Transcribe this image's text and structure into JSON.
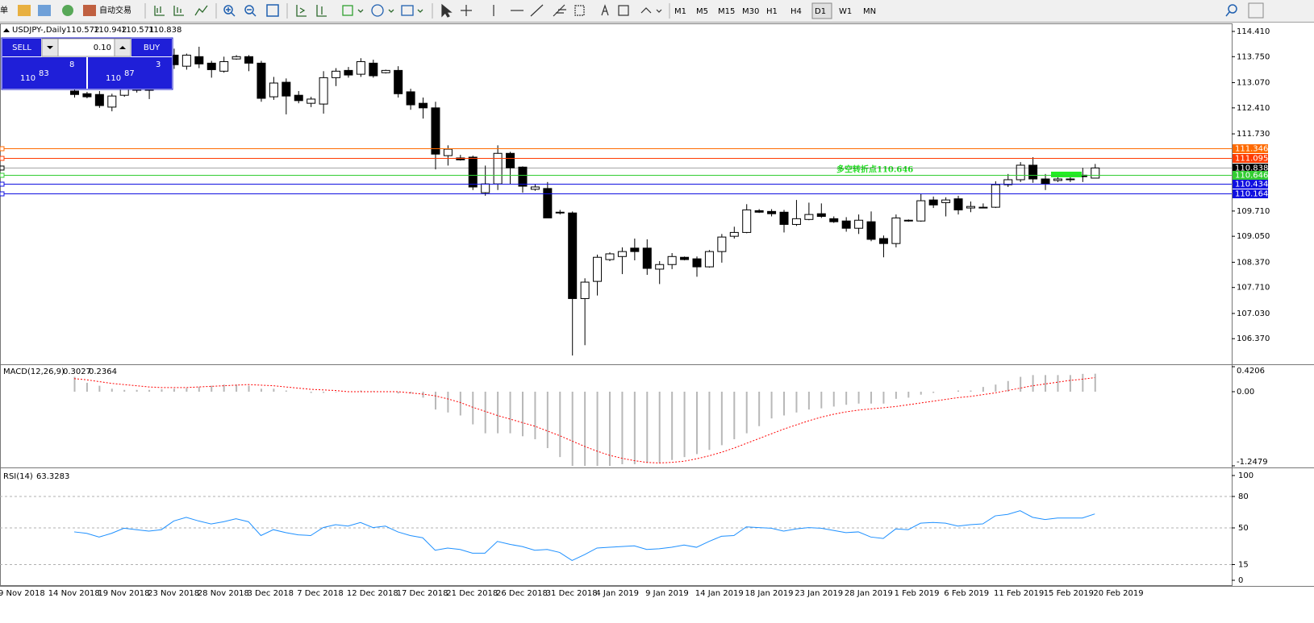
{
  "toolbar": {
    "menu_fragment": "单",
    "autotrade": "自动交易",
    "timeframes": [
      "M1",
      "M5",
      "M15",
      "M30",
      "H1",
      "H4",
      "D1",
      "W1",
      "MN"
    ],
    "active_timeframe": "D1"
  },
  "trade_panel": {
    "sell": "SELL",
    "buy": "BUY",
    "lots": "0.10",
    "sell_price": {
      "big": "110",
      "pips": "83",
      "point": "8"
    },
    "buy_price": {
      "big": "110",
      "pips": "87",
      "point": "3"
    }
  },
  "chart": {
    "symbol": "USDJPY-,Daily",
    "candles": {
      "open": [
        112.85,
        112.78,
        112.76,
        112.43,
        112.74,
        112.87,
        113.12,
        112.91,
        113.79,
        113.5,
        113.75,
        113.58,
        113.37,
        113.69,
        113.75,
        113.58,
        112.7,
        113.08,
        112.74,
        112.53,
        112.51,
        113.2,
        113.39,
        113.29,
        113.58,
        113.33,
        113.39,
        112.83,
        112.53,
        112.41,
        111.16,
        111.1,
        111.12,
        110.19,
        110.42,
        111.22,
        110.86,
        110.28,
        110.3,
        109.68,
        109.66,
        107.42,
        107.87,
        108.44,
        108.52,
        108.74,
        108.74,
        108.19,
        108.31,
        108.5,
        108.46,
        108.25,
        108.65,
        109.05,
        109.15,
        109.72,
        109.7,
        109.68,
        109.36,
        109.49,
        109.64,
        109.51,
        109.45,
        109.26,
        109.43,
        108.99,
        108.86,
        109.47,
        109.45,
        110.0,
        109.93,
        110.03,
        109.79,
        109.79,
        109.81,
        110.4,
        110.53,
        110.91,
        110.55,
        110.51,
        110.53,
        110.65,
        110.572
      ],
      "high": [
        112.91,
        112.83,
        112.85,
        112.78,
        113.02,
        113.12,
        113.22,
        113.33,
        113.96,
        113.83,
        114.01,
        113.64,
        113.75,
        113.79,
        113.79,
        113.64,
        113.22,
        113.18,
        112.85,
        112.7,
        113.37,
        113.45,
        113.48,
        113.71,
        113.67,
        113.41,
        113.5,
        112.91,
        112.68,
        112.57,
        111.43,
        111.18,
        111.16,
        110.9,
        111.43,
        111.26,
        110.88,
        110.42,
        110.47,
        109.74,
        109.7,
        107.95,
        108.57,
        108.63,
        108.76,
        108.99,
        108.97,
        108.4,
        108.61,
        108.52,
        108.52,
        108.69,
        109.11,
        109.3,
        109.89,
        109.76,
        109.76,
        109.74,
        110.0,
        109.93,
        109.91,
        109.57,
        109.55,
        109.62,
        109.7,
        109.07,
        109.62,
        109.49,
        110.17,
        110.09,
        110.07,
        110.11,
        109.96,
        109.91,
        110.49,
        110.68,
        110.99,
        111.12,
        110.68,
        110.7,
        110.72,
        110.84,
        110.942
      ],
      "low": [
        112.68,
        112.66,
        112.41,
        112.32,
        112.7,
        112.81,
        112.64,
        112.89,
        113.43,
        113.41,
        113.45,
        113.2,
        113.33,
        113.67,
        113.37,
        112.57,
        112.62,
        112.24,
        112.53,
        112.43,
        112.26,
        112.98,
        113.2,
        113.22,
        113.2,
        113.31,
        112.68,
        112.36,
        112.13,
        110.8,
        110.9,
        111.03,
        110.26,
        110.11,
        110.26,
        110.42,
        110.19,
        110.24,
        109.53,
        109.62,
        105.93,
        106.2,
        107.5,
        108.4,
        108.06,
        108.42,
        108.04,
        107.8,
        108.19,
        108.42,
        107.99,
        108.23,
        108.36,
        108.99,
        109.13,
        109.66,
        109.57,
        109.15,
        109.32,
        109.47,
        109.53,
        109.4,
        109.17,
        109.11,
        108.92,
        108.5,
        108.76,
        109.43,
        109.43,
        109.79,
        109.57,
        109.62,
        109.68,
        109.79,
        109.79,
        110.34,
        110.47,
        110.45,
        110.26,
        110.47,
        110.47,
        110.47,
        110.571
      ],
      "close": [
        112.76,
        112.7,
        112.47,
        112.72,
        112.93,
        113.02,
        112.87,
        113.22,
        113.54,
        113.79,
        113.56,
        113.41,
        113.62,
        113.75,
        113.58,
        112.66,
        113.06,
        112.72,
        112.6,
        112.64,
        113.2,
        113.37,
        113.27,
        113.62,
        113.25,
        113.39,
        112.78,
        112.49,
        112.41,
        111.2,
        111.33,
        111.05,
        110.34,
        110.42,
        111.22,
        110.84,
        110.36,
        110.34,
        109.53,
        109.66,
        107.42,
        107.85,
        108.5,
        108.59,
        108.65,
        108.65,
        108.21,
        108.31,
        108.52,
        108.44,
        108.25,
        108.65,
        109.03,
        109.15,
        109.74,
        109.68,
        109.64,
        109.36,
        109.51,
        109.62,
        109.57,
        109.43,
        109.26,
        109.47,
        108.97,
        108.86,
        109.53,
        109.45,
        109.98,
        109.87,
        110.0,
        109.74,
        109.83,
        109.81,
        110.4,
        110.53,
        110.91,
        110.55,
        110.42,
        110.55,
        110.55,
        110.61,
        110.838
      ]
    },
    "ylim": [
      105.7,
      114.6
    ],
    "yticks": [
      {
        "value": 114.41,
        "label": "114.410"
      },
      {
        "value": 113.75,
        "label": "113.750"
      },
      {
        "value": 113.07,
        "label": "113.070"
      },
      {
        "value": 112.41,
        "label": "112.410"
      },
      {
        "value": 111.73,
        "label": "111.730"
      },
      {
        "value": 109.71,
        "label": "109.710"
      },
      {
        "value": 109.05,
        "label": "109.050"
      },
      {
        "value": 108.37,
        "label": "108.370"
      },
      {
        "value": 107.71,
        "label": "107.710"
      },
      {
        "value": 107.03,
        "label": "107.030"
      },
      {
        "value": 106.37,
        "label": "106.370"
      }
    ],
    "levels": [
      {
        "value": 111.346,
        "color": "#ff6a00"
      },
      {
        "value": 111.095,
        "color": "#ff3c00"
      },
      {
        "value": 110.838,
        "color": "#000000"
      },
      {
        "value": 110.646,
        "color": "#32cd32"
      },
      {
        "value": 110.434,
        "color": "#1010e0"
      },
      {
        "value": 110.164,
        "color": "#1010e0"
      }
    ],
    "annotation": "多空转折点110.646",
    "annotation_color": "#22dd22",
    "dates": [
      "9 Nov 2018",
      "14 Nov 2018",
      "19 Nov 2018",
      "23 Nov 2018",
      "28 Nov 2018",
      "3 Dec 2018",
      "7 Dec 2018",
      "12 Dec 2018",
      "17 Dec 2018",
      "21 Dec 2018",
      "26 Dec 2018",
      "31 Dec 2018",
      "4 Jan 2019",
      "9 Jan 2019",
      "14 Jan 2019",
      "18 Jan 2019",
      "23 Jan 2019",
      "28 Jan 2019",
      "1 Feb 2019",
      "6 Feb 2019",
      "11 Feb 2019",
      "15 Feb 2019",
      "20 Feb 2019"
    ]
  },
  "macd": {
    "label": "MACD(12,26,9)",
    "bar_color": "#b8b8b8",
    "signal_color": "#ff0000",
    "values": [
      0.25,
      0.15,
      0.1,
      0.05,
      0.03,
      0.03,
      0.03,
      0.04,
      0.05,
      0.06,
      0.08,
      0.1,
      0.12,
      0.12,
      0.1,
      0.05,
      0.05,
      0.02,
      0,
      -0.02,
      -0.02,
      -0.01,
      0,
      0.02,
      0.01,
      0,
      -0.03,
      -0.03,
      -0.1,
      -0.3,
      -0.35,
      -0.4,
      -0.55,
      -0.7,
      -0.7,
      -0.7,
      -0.75,
      -0.8,
      -0.95,
      -1.1,
      -1.25,
      -1.25,
      -1.25,
      -1.25,
      -1.22,
      -1.22,
      -1.2,
      -1.2,
      -1.15,
      -1.1,
      -1.05,
      -0.98,
      -0.9,
      -0.8,
      -0.7,
      -0.58,
      -0.45,
      -0.4,
      -0.35,
      -0.3,
      -0.28,
      -0.25,
      -0.22,
      -0.2,
      -0.2,
      -0.2,
      -0.12,
      -0.1,
      -0.05,
      -0.02,
      0,
      0.02,
      0.02,
      0.08,
      0.12,
      0.18,
      0.25,
      0.28,
      0.28,
      0.28,
      0.28,
      0.3,
      0.3027
    ],
    "signal": [
      0.22,
      0.2,
      0.17,
      0.14,
      0.12,
      0.1,
      0.08,
      0.07,
      0.07,
      0.07,
      0.08,
      0.09,
      0.1,
      0.11,
      0.12,
      0.11,
      0.1,
      0.08,
      0.06,
      0.04,
      0.03,
      0.02,
      0,
      0,
      0,
      0,
      0,
      -0.02,
      -0.04,
      -0.07,
      -0.12,
      -0.18,
      -0.26,
      -0.33,
      -0.4,
      -0.46,
      -0.52,
      -0.58,
      -0.66,
      -0.74,
      -0.83,
      -0.92,
      -1.0,
      -1.07,
      -1.12,
      -1.16,
      -1.19,
      -1.2,
      -1.19,
      -1.17,
      -1.13,
      -1.08,
      -1.02,
      -0.95,
      -0.87,
      -0.79,
      -0.71,
      -0.63,
      -0.56,
      -0.49,
      -0.43,
      -0.38,
      -0.34,
      -0.31,
      -0.29,
      -0.27,
      -0.25,
      -0.22,
      -0.19,
      -0.16,
      -0.13,
      -0.1,
      -0.08,
      -0.05,
      -0.02,
      0.02,
      0.06,
      0.1,
      0.13,
      0.16,
      0.19,
      0.21,
      0.2364
    ],
    "ylim": [
      -1.2479,
      0.4206
    ],
    "yticks": [
      0.4206,
      {
        "value": 0,
        "label": "0.00"
      },
      -1.2479
    ]
  },
  "rsi": {
    "label": "RSI(14)",
    "color": "#1e90ff",
    "values": [
      46.2,
      44.8,
      41.3,
      44.8,
      49.7,
      48.3,
      46.9,
      48.3,
      56.6,
      60.1,
      56.6,
      53.8,
      55.9,
      58.7,
      55.9,
      42.7,
      48.3,
      45.5,
      43.4,
      42.7,
      50.3,
      53.1,
      51.7,
      55.2,
      50.3,
      51.7,
      46.2,
      42.7,
      40.6,
      28.7,
      30.8,
      29.4,
      25.9,
      25.9,
      37.1,
      34.3,
      32.2,
      28.7,
      29.4,
      26.6,
      18.9,
      24.5,
      30.8,
      31.5,
      32.2,
      32.9,
      29.4,
      30.1,
      31.5,
      33.6,
      31.5,
      37.1,
      42.0,
      42.7,
      51.0,
      50.3,
      49.7,
      46.9,
      49.0,
      50.3,
      49.7,
      47.6,
      45.5,
      46.2,
      41.3,
      39.9,
      49.0,
      48.3,
      54.5,
      55.2,
      54.5,
      51.7,
      53.1,
      53.8,
      61.5,
      62.9,
      66.4,
      60.1,
      58.0,
      59.4,
      59.4,
      59.4,
      63.3283
    ],
    "ylim": [
      0,
      100
    ],
    "yticks": [
      100,
      80,
      50,
      15,
      0
    ]
  }
}
